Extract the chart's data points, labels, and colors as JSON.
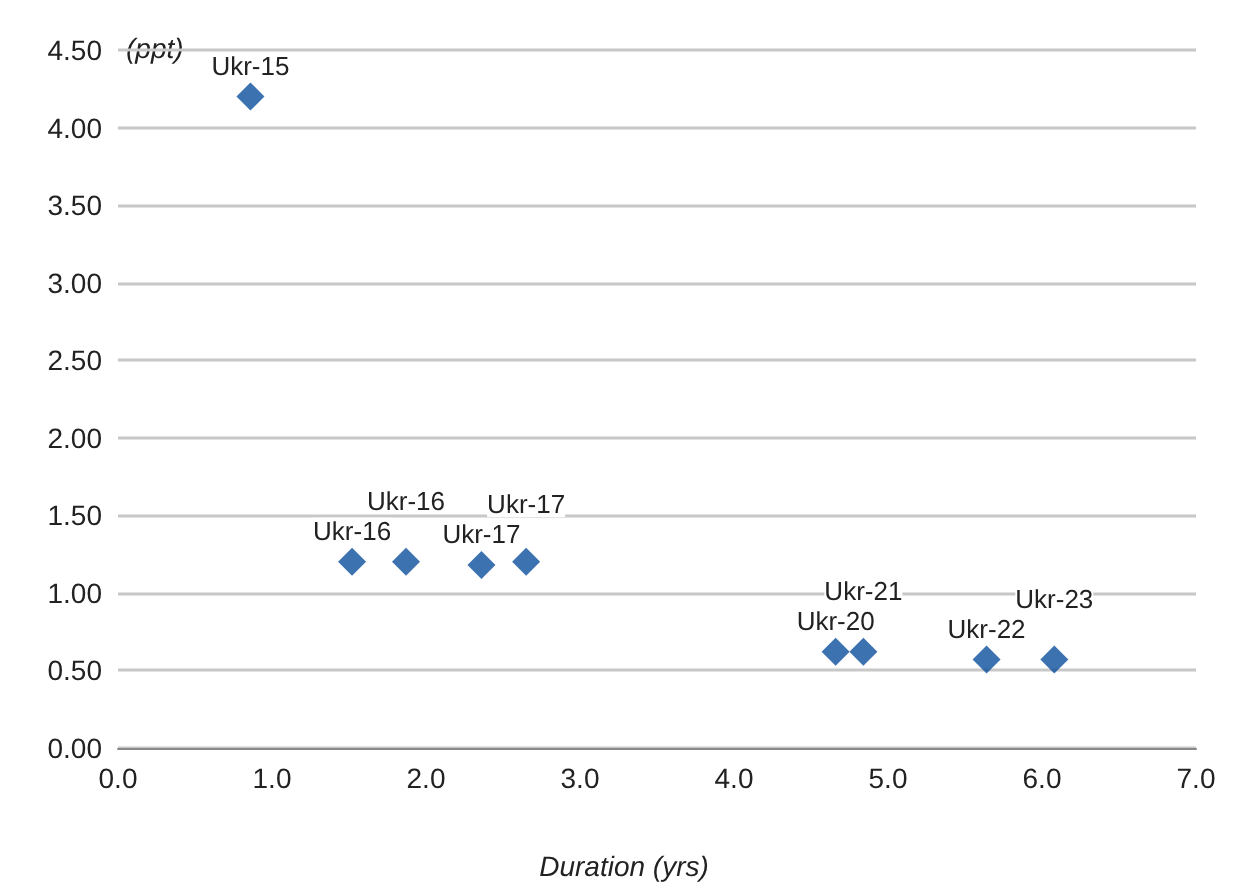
{
  "chart_data": {
    "type": "scatter",
    "xlabel": "Duration (yrs)",
    "ylabel": "(ppt)",
    "series": [
      {
        "color": "#0b4f9c",
        "x": [
          0.86,
          1.52,
          1.87,
          2.36,
          2.65,
          4.66,
          4.84,
          5.64,
          6.08
        ],
        "values": [
          4.2,
          1.2,
          1.2,
          1.18,
          1.2,
          0.62,
          0.62,
          0.57,
          0.57
        ]
      }
    ],
    "annotations": [
      {
        "text": "Ukr-15",
        "x": 0.86,
        "y": 4.2
      },
      {
        "text": "Ukr-16",
        "x": 1.52,
        "y": 1.2
      },
      {
        "text": "Ukr-16",
        "x": 1.87,
        "y": 1.2
      },
      {
        "text": "Ukr-17",
        "x": 2.36,
        "y": 1.18
      },
      {
        "text": "Ukr-17",
        "x": 2.65,
        "y": 1.2
      },
      {
        "text": "Ukr-20",
        "x": 4.66,
        "y": 0.62
      },
      {
        "text": "Ukr-21",
        "x": 4.84,
        "y": 0.62
      },
      {
        "text": "Ukr-22",
        "x": 5.64,
        "y": 0.57
      },
      {
        "text": "Ukr-23",
        "x": 6.08,
        "y": 0.57
      }
    ],
    "marker": "diamond",
    "grid": "y",
    "xlim": [
      0,
      7
    ],
    "xticks": [
      {
        "value": 0,
        "label": "0.0"
      },
      {
        "value": 1,
        "label": "1.0"
      },
      {
        "value": 2,
        "label": "2.0"
      },
      {
        "value": 3,
        "label": "3.0"
      },
      {
        "value": 4,
        "label": "4.0"
      },
      {
        "value": 5,
        "label": "5.0"
      },
      {
        "value": 6,
        "label": "6.0"
      },
      {
        "value": 7,
        "label": "7.0"
      }
    ],
    "ylim": [
      0,
      4.5
    ],
    "yticks": [
      {
        "value": 0,
        "label": "0.00"
      },
      {
        "value": 0.5,
        "label": "0.50"
      },
      {
        "value": 1,
        "label": "1.00"
      },
      {
        "value": 1.5,
        "label": "1.50"
      },
      {
        "value": 2,
        "label": "2.00"
      },
      {
        "value": 2.5,
        "label": "2.50"
      },
      {
        "value": 3,
        "label": "3.00"
      },
      {
        "value": 3.5,
        "label": "3.50"
      },
      {
        "value": 4,
        "label": "4.00"
      },
      {
        "value": 4.5,
        "label": "4.50"
      }
    ]
  }
}
